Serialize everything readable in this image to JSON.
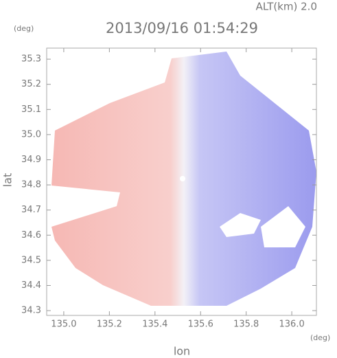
{
  "chart_data": {
    "type": "radar-image",
    "title": "2013/09/16 01:54:29",
    "altitude_label": "ALT(km) 2.0",
    "x_label": "lon",
    "y_label": "lat",
    "x_unit": "(deg)",
    "y_unit": "(deg)",
    "xlim": [
      134.925,
      136.108
    ],
    "ylim": [
      34.281,
      35.344
    ],
    "xticks": [
      {
        "value": 135,
        "label": "135.0"
      },
      135.2,
      135.4,
      135.6,
      135.8,
      {
        "value": 136,
        "label": "136.0"
      }
    ],
    "yticks": [
      34.3,
      34.4,
      34.5,
      34.6,
      34.7,
      34.8,
      34.9,
      {
        "value": 35,
        "label": "35.0"
      },
      35.1,
      35.2,
      35.3
    ]
  }
}
